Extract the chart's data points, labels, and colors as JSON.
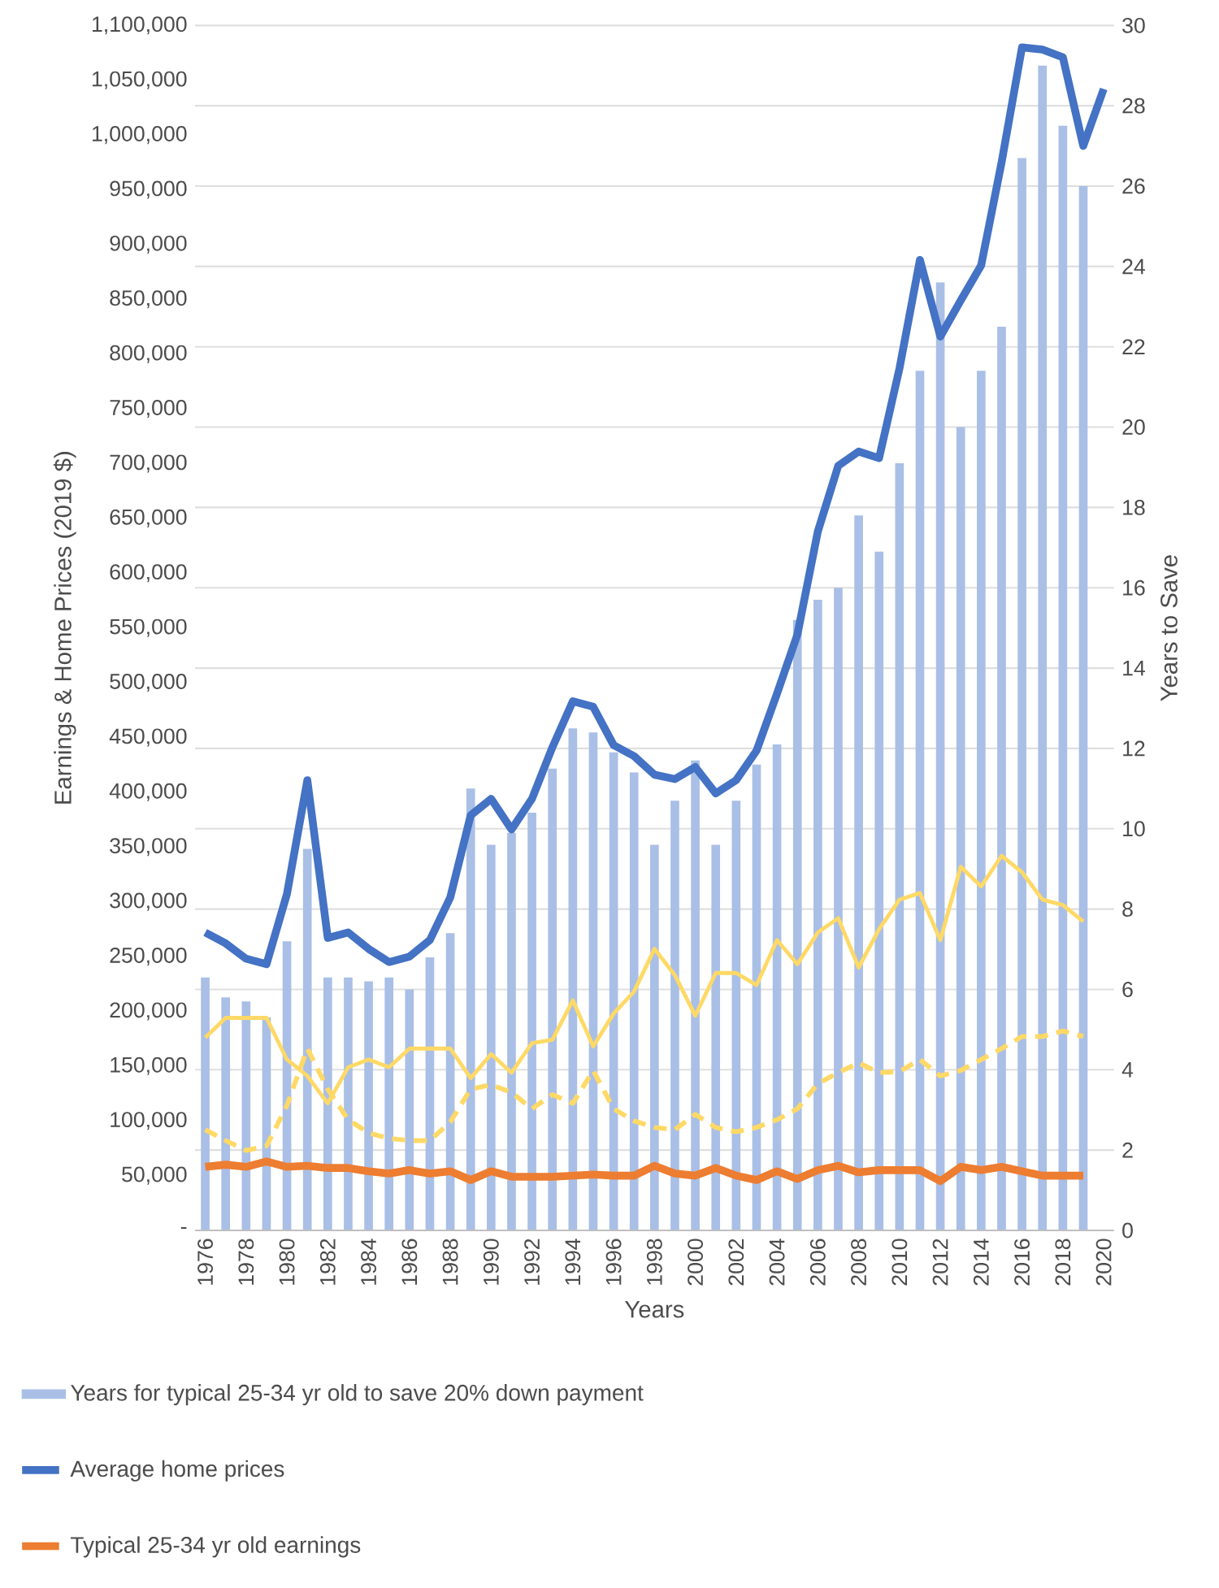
{
  "chart_data": {
    "type": "bar",
    "xlabel": "Years",
    "ylabel": "Earnings & Home Prices (2019 $)",
    "y2label": "Years to Save",
    "grid": "y",
    "legend": "bottom",
    "categories": [
      "1976",
      null,
      "1978",
      null,
      "1980",
      null,
      "1982",
      null,
      "1984",
      null,
      "1986",
      null,
      "1988",
      null,
      "1990",
      null,
      "1992",
      null,
      "1994",
      null,
      "1996",
      null,
      "1998",
      null,
      "2000",
      null,
      "2002",
      null,
      "2004",
      null,
      "2006",
      null,
      "2008",
      null,
      "2010",
      null,
      "2012",
      null,
      "2014",
      null,
      "2016",
      null,
      "2018",
      null,
      "2020"
    ],
    "ylim": [
      0,
      1100000
    ],
    "yticks": [
      {
        "value": 0,
        "label": "-"
      },
      {
        "value": 50000,
        "label": "50,000"
      },
      {
        "value": 100000,
        "label": "100,000"
      },
      {
        "value": 150000,
        "label": "150,000"
      },
      {
        "value": 200000,
        "label": "200,000"
      },
      {
        "value": 250000,
        "label": "250,000"
      },
      {
        "value": 300000,
        "label": "300,000"
      },
      {
        "value": 350000,
        "label": "350,000"
      },
      {
        "value": 400000,
        "label": "400,000"
      },
      {
        "value": 450000,
        "label": "450,000"
      },
      {
        "value": 500000,
        "label": "500,000"
      },
      {
        "value": 550000,
        "label": "550,000"
      },
      {
        "value": 600000,
        "label": "600,000"
      },
      {
        "value": 650000,
        "label": "650,000"
      },
      {
        "value": 700000,
        "label": "700,000"
      },
      {
        "value": 750000,
        "label": "750,000"
      },
      {
        "value": 800000,
        "label": "800,000"
      },
      {
        "value": 850000,
        "label": "850,000"
      },
      {
        "value": 900000,
        "label": "900,000"
      },
      {
        "value": 950000,
        "label": "950,000"
      },
      {
        "value": 1000000,
        "label": "1,000,000"
      },
      {
        "value": 1050000,
        "label": "1,050,000"
      },
      {
        "value": 1100000,
        "label": "1,100,000"
      }
    ],
    "y2lim": [
      0,
      30
    ],
    "y2ticks": [
      0,
      2,
      4,
      6,
      8,
      10,
      12,
      14,
      16,
      18,
      20,
      22,
      24,
      26,
      28,
      30
    ],
    "series": [
      {
        "name": "Years for typical 25-34 yr old to save 20% down payment",
        "axis": "y2",
        "color": "#a9bfe6",
        "values": [
          6.3,
          5.8,
          5.7,
          5.3,
          7.2,
          9.5,
          6.3,
          6.3,
          6.2,
          6.3,
          6.0,
          6.8,
          7.4,
          11.0,
          9.6,
          9.9,
          10.4,
          11.5,
          12.5,
          12.4,
          11.9,
          11.4,
          9.6,
          10.7,
          11.7,
          9.6,
          10.7,
          11.6,
          12.1,
          15.2,
          15.7,
          16.0,
          17.8,
          16.9,
          19.1,
          21.4,
          23.6,
          20.0,
          21.4,
          22.5,
          26.7,
          29.0,
          27.5,
          26.0,
          null
        ]
      },
      {
        "name": "Average home prices",
        "type": "line",
        "axis": "y",
        "color": "#4472c4",
        "line_style": "solid",
        "values": [
          272000,
          262000,
          248000,
          243000,
          307000,
          411000,
          267000,
          272000,
          257000,
          245000,
          250000,
          265000,
          304000,
          379000,
          394000,
          366000,
          394000,
          441000,
          483000,
          478000,
          443000,
          433000,
          416000,
          412000,
          423000,
          399000,
          411000,
          438000,
          490000,
          544000,
          638000,
          698000,
          711000,
          705000,
          787000,
          886000,
          816000,
          849000,
          881000,
          975000,
          1080000,
          1078000,
          1071000,
          990000,
          1042000
        ]
      },
      {
        "name": "Typical 25-34 yr old earnings",
        "type": "line",
        "axis": "y",
        "color": "#ed7d31",
        "line_style": "solid",
        "values": [
          58000,
          60000,
          58000,
          63000,
          58000,
          59000,
          57000,
          57000,
          54000,
          52000,
          55000,
          52000,
          54000,
          46000,
          54000,
          49000,
          49000,
          49000,
          50000,
          51000,
          50000,
          50000,
          59000,
          52000,
          50000,
          57000,
          50000,
          46000,
          54000,
          47000,
          55000,
          59000,
          53000,
          55000,
          55000,
          55000,
          45000,
          58000,
          55000,
          58000,
          54000,
          50000,
          50000,
          50000,
          null
        ]
      },
      {
        "type": "line",
        "axis": "y",
        "color": "#ffd966",
        "line_style": "solid",
        "values": [
          176000,
          194000,
          194000,
          194000,
          156000,
          141000,
          116000,
          149000,
          156000,
          149000,
          166000,
          166000,
          166000,
          139000,
          161000,
          144000,
          171000,
          174000,
          210000,
          168000,
          198000,
          218000,
          257000,
          233000,
          196000,
          235000,
          235000,
          224000,
          265000,
          243000,
          272000,
          285000,
          240000,
          275000,
          302000,
          308000,
          265000,
          332000,
          314000,
          342000,
          327000,
          302000,
          297000,
          282000,
          null
        ]
      },
      {
        "type": "line",
        "axis": "y",
        "color": "#ffd966",
        "line_style": "dashed",
        "values": [
          92000,
          82000,
          73000,
          77000,
          114000,
          166000,
          129000,
          101000,
          89000,
          84000,
          82000,
          82000,
          99000,
          129000,
          133000,
          126000,
          111000,
          124000,
          116000,
          146000,
          111000,
          100000,
          94000,
          92000,
          106000,
          94000,
          90000,
          94000,
          101000,
          111000,
          134000,
          144000,
          153000,
          144000,
          145000,
          156000,
          141000,
          146000,
          156000,
          166000,
          177000,
          177000,
          182000,
          177000,
          null
        ]
      }
    ]
  }
}
